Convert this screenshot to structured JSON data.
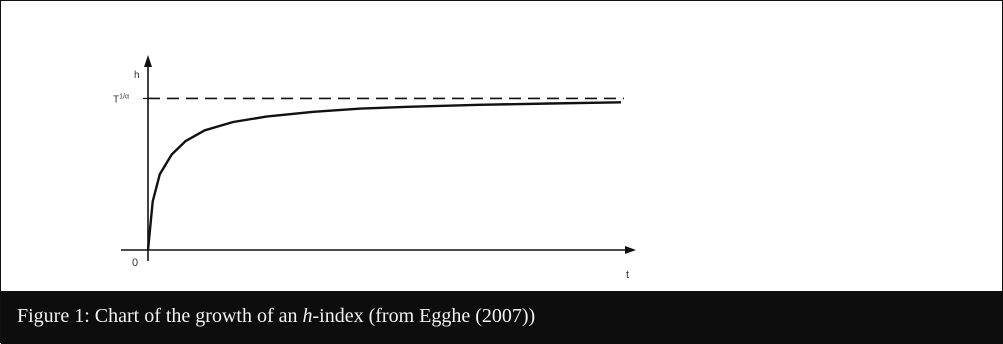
{
  "chart_data": {
    "type": "line",
    "ylabel": "h",
    "xlabel": "t",
    "origin_label": "0",
    "asymptote_label": "T^{1/α}",
    "asymptote_label_base": "T",
    "asymptote_label_exp": "1/α",
    "asymptote_value": 1.0,
    "xlim": [
      0,
      1
    ],
    "ylim": [
      0,
      1.3
    ],
    "grid": false,
    "legend": "none",
    "curve": {
      "x": [
        0,
        0.01,
        0.025,
        0.05,
        0.08,
        0.12,
        0.18,
        0.25,
        0.35,
        0.45,
        0.55,
        0.7,
        0.85,
        1.0
      ],
      "y": [
        0,
        0.32,
        0.5,
        0.63,
        0.72,
        0.79,
        0.845,
        0.88,
        0.912,
        0.933,
        0.945,
        0.958,
        0.967,
        0.975
      ]
    }
  },
  "caption": {
    "prefix": "Figure 1: Chart of the growth of an ",
    "italic": "h",
    "suffix": "-index (from Egghe (2007))"
  },
  "colors": {
    "line": "#111111",
    "caption_bg": "#0d0d0d",
    "caption_text": "#f2f2f2"
  }
}
